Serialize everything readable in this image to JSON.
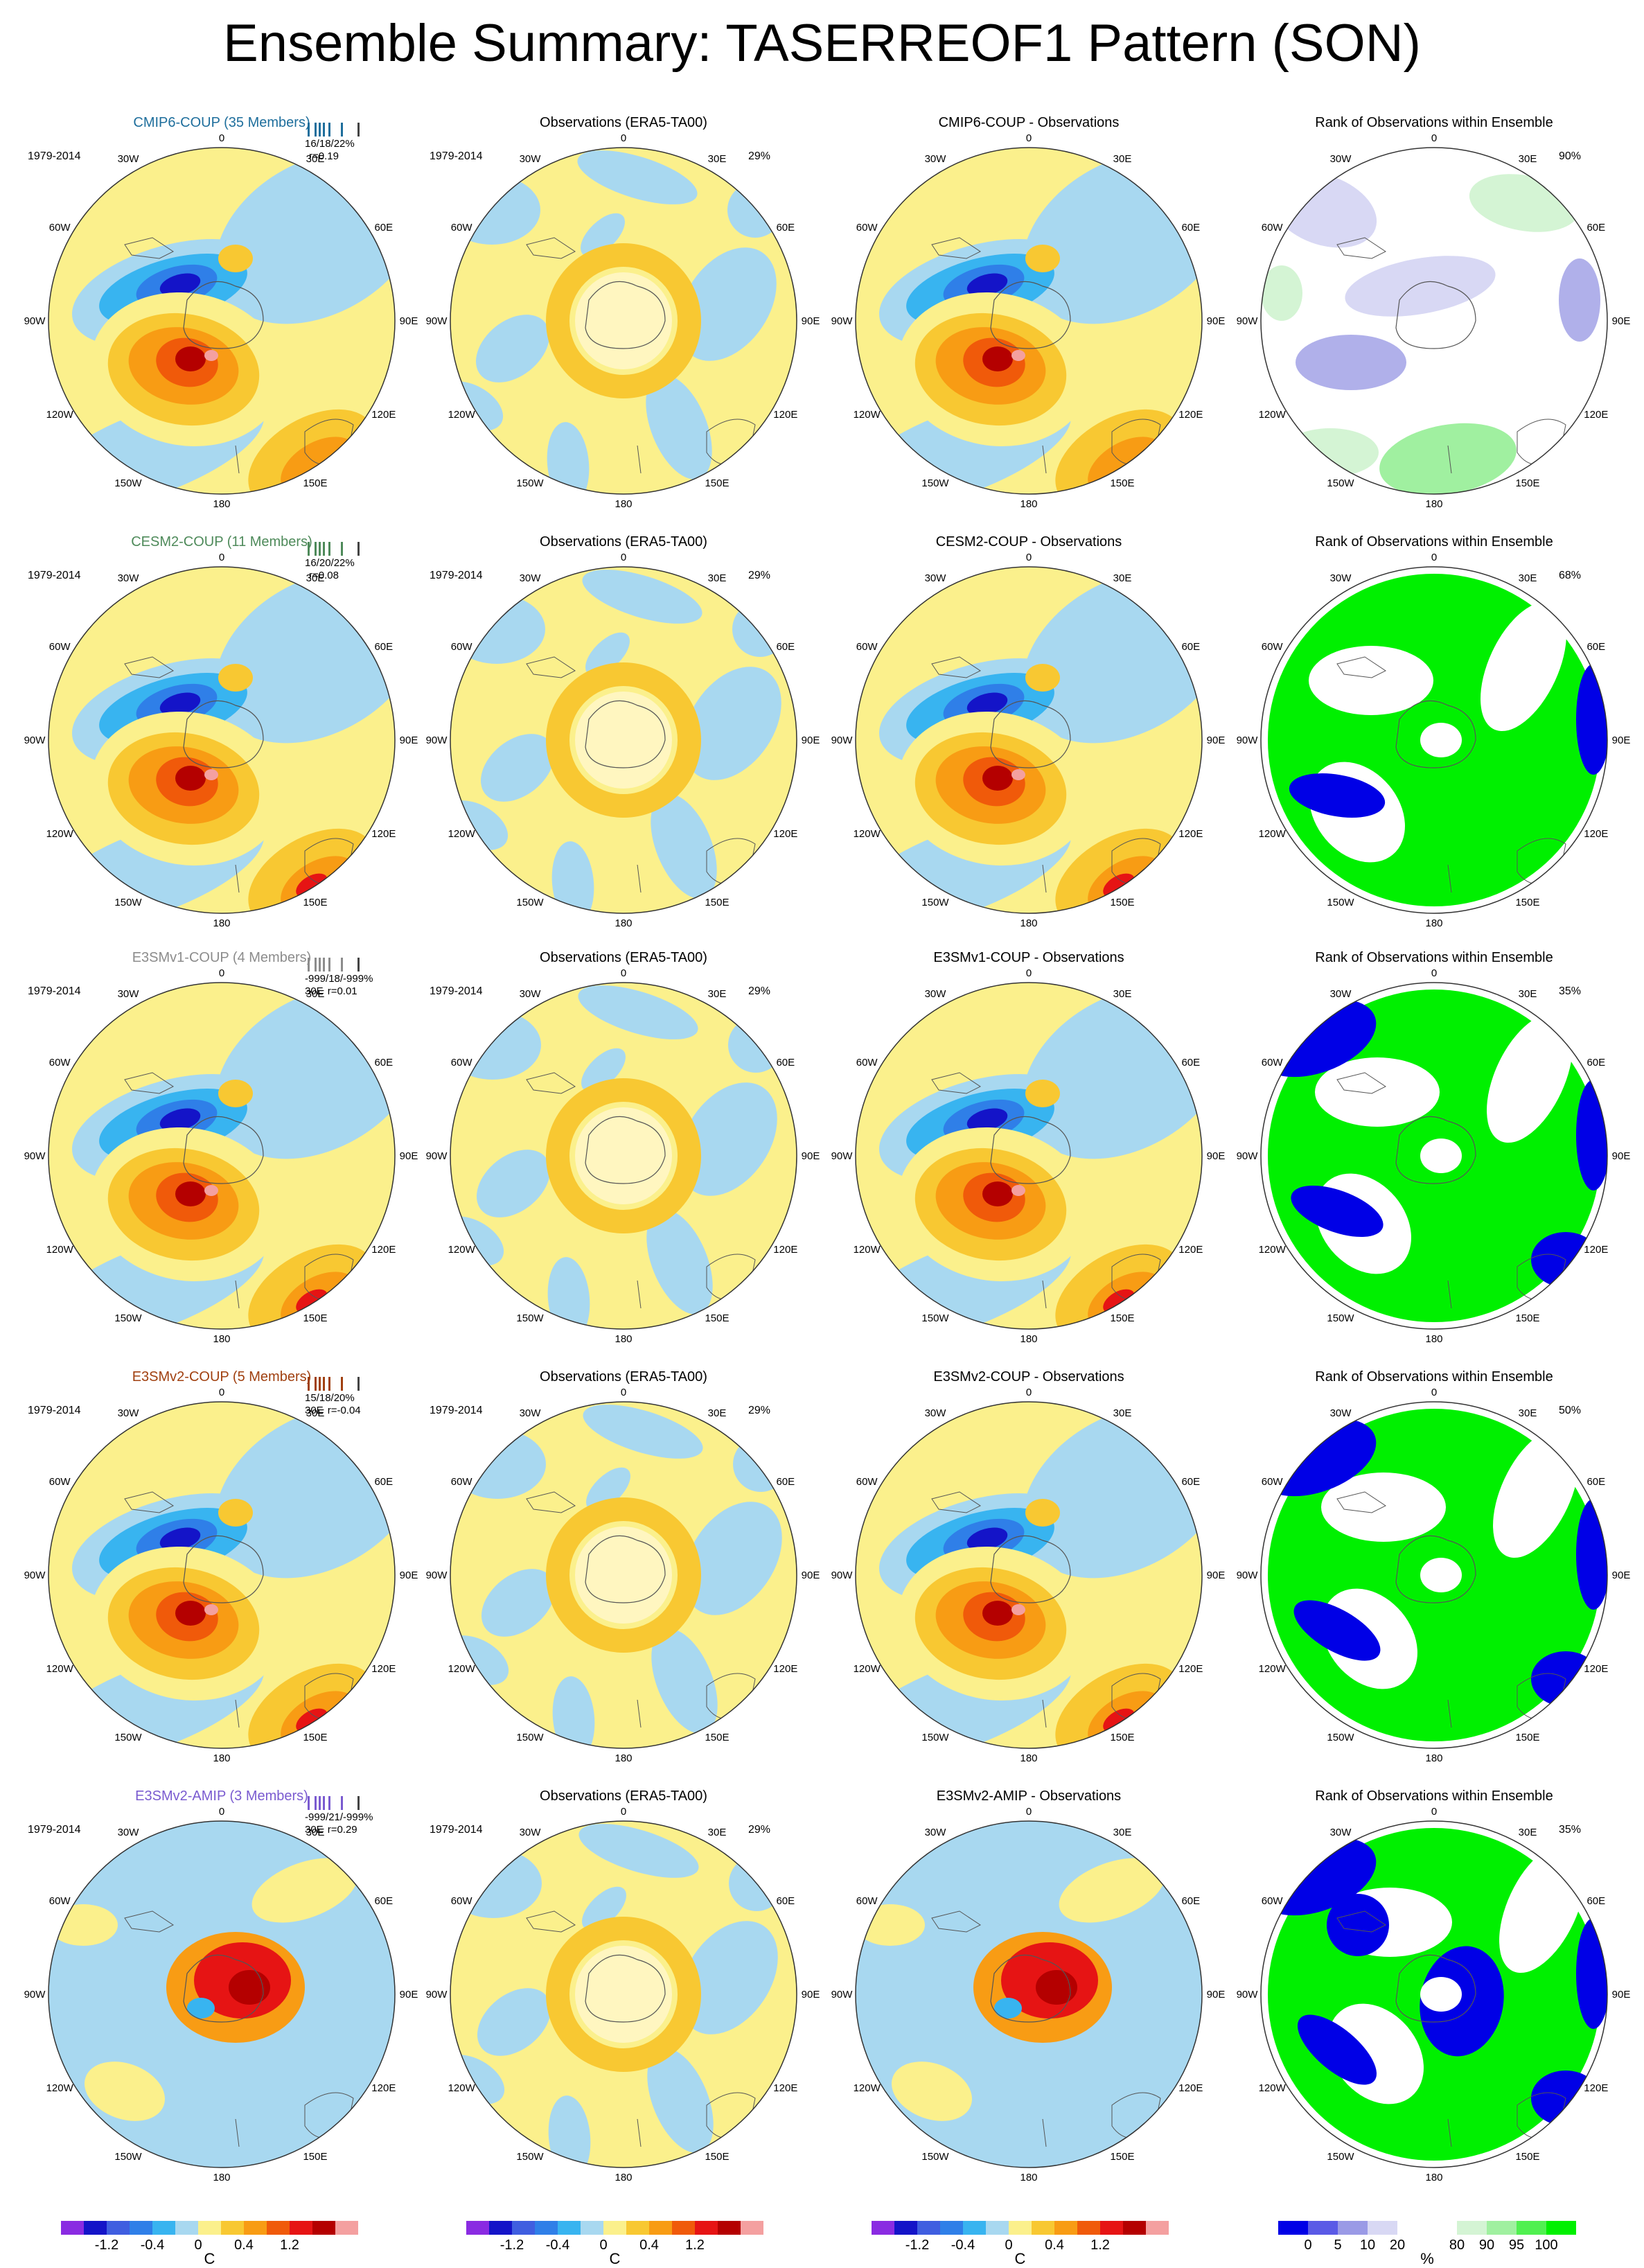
{
  "title": "Ensemble Summary: TASERREOF1 Pattern (SON)",
  "period": "1979-2014",
  "longitude_labels": [
    "0",
    "30E",
    "60E",
    "90E",
    "120E",
    "150E",
    "180",
    "150W",
    "120W",
    "90W",
    "60W",
    "30W"
  ],
  "column_titles": {
    "obs": "Observations (ERA5-TA00)",
    "rank": "Rank of Observations within Ensemble"
  },
  "rows": [
    {
      "model_title": "CMIP6-COUP (35 Members)",
      "diff_title": "CMIP6-COUP - Observations",
      "stats_line1": "16/18/22%",
      "stats_line2": "r=0.19",
      "stats_prefix": "",
      "obs_pct": "29%",
      "rank_pct": "90%",
      "accent": "#1e6e9c",
      "rank_style": "light"
    },
    {
      "model_title": "CESM2-COUP (11 Members)",
      "diff_title": "CESM2-COUP - Observations",
      "stats_line1": "16/20/22%",
      "stats_line2": "r=0.08",
      "stats_prefix": "",
      "obs_pct": "29%",
      "rank_pct": "68%",
      "accent": "#4e8a5a",
      "rank_style": "strong"
    },
    {
      "model_title": "E3SMv1-COUP (4 Members)",
      "diff_title": "E3SMv1-COUP - Observations",
      "stats_line1": "-999/18/-999%",
      "stats_line2": "r=0.01",
      "stats_prefix": "30E",
      "obs_pct": "29%",
      "rank_pct": "35%",
      "accent": "#8c8c8c",
      "rank_style": "strong"
    },
    {
      "model_title": "E3SMv2-COUP (5 Members)",
      "diff_title": "E3SMv2-COUP - Observations",
      "stats_line1": "15/18/20%",
      "stats_line2": "r=-0.04",
      "stats_prefix": "30E",
      "obs_pct": "29%",
      "rank_pct": "50%",
      "accent": "#a04010",
      "rank_style": "strong"
    },
    {
      "model_title": "E3SMv2-AMIP (3 Members)",
      "diff_title": "E3SMv2-AMIP - Observations",
      "stats_line1": "-999/21/-999%",
      "stats_line2": "r=0.29",
      "stats_prefix": "30E",
      "obs_pct": "29%",
      "rank_pct": "35%",
      "accent": "#7a5bd0",
      "rank_style": "strong"
    }
  ],
  "temp_colorbar": {
    "colors": [
      "#8a2be2",
      "#1414c8",
      "#3f5ee0",
      "#2f7fe8",
      "#38b4f0",
      "#a8d8f0",
      "#fbf08c",
      "#f8c832",
      "#f89c14",
      "#f05a0a",
      "#e61414",
      "#b40000",
      "#f4a0a0"
    ],
    "labels": [
      "-1.2",
      "-0.4",
      "0",
      "0.4",
      "1.2"
    ],
    "unit": "C"
  },
  "rank_colorbar": {
    "colors": [
      "#0000e6",
      "#5a5ae6",
      "#9a9ae6",
      "#d8d8f4",
      "#ffffff",
      "#ffffff",
      "#d4f4d4",
      "#a0f0a0",
      "#50f050",
      "#00f000"
    ],
    "labels": [
      "0",
      "5",
      "10",
      "20",
      "80",
      "90",
      "95",
      "100"
    ],
    "unit": "%"
  }
}
